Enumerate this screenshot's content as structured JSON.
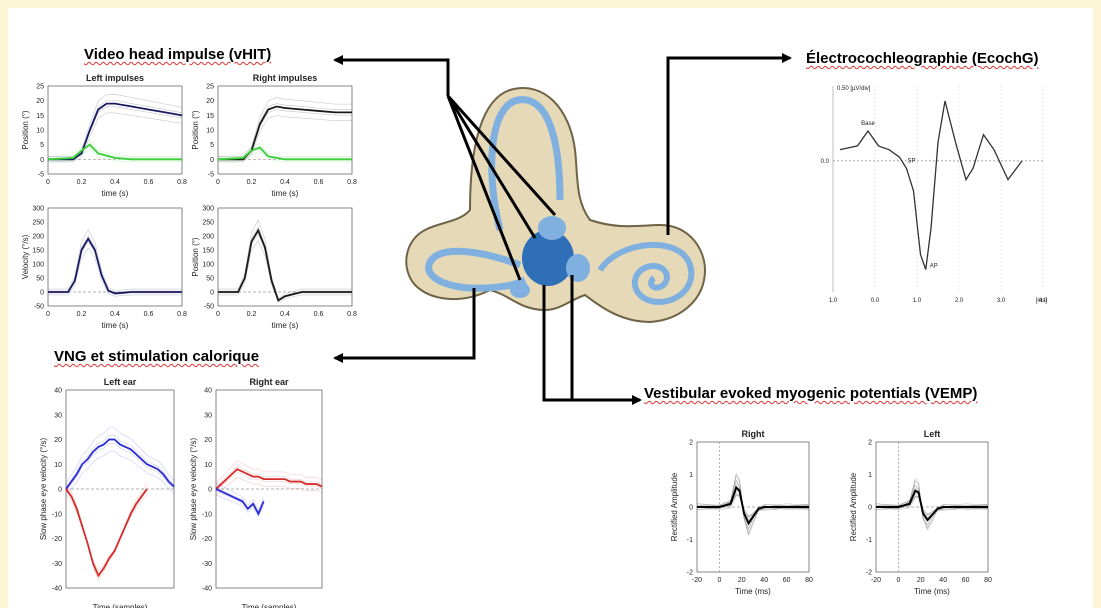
{
  "headings": {
    "vhit": "Video head impulse (vHIT)",
    "ecochg": "Électrocochleographie (EcochG)",
    "vng": "VNG et stimulation calorique",
    "vemp": "Vestibular evoked myogenic potentials (VEMP)"
  },
  "colors": {
    "background": "#fdf6d6",
    "left_ear": "#2b2bd6",
    "right_ear": "#d62b2b",
    "gain": "#3cd03c",
    "inner_ear_blue": "#7fb0e0",
    "inner_ear_dark": "#2f6fb8",
    "bone": "#e6d9b8"
  },
  "chart_data": [
    {
      "id": "vhit_left_position",
      "type": "line",
      "title": "Left impulses",
      "xlabel": "time (s)",
      "ylabel": "Position (°)",
      "xlim": [
        0,
        0.8
      ],
      "ylim": [
        -5,
        25
      ],
      "xticks": [
        "0",
        "0.2",
        "0.4",
        "0.6",
        "0.8"
      ],
      "yticks": [
        "-5",
        "0",
        "5",
        "10",
        "15",
        "20",
        "25"
      ],
      "series": [
        {
          "x": [
            0,
            0.15,
            0.2,
            0.25,
            0.3,
            0.35,
            0.4,
            0.5,
            0.6,
            0.7,
            0.8
          ],
          "y": [
            0,
            0,
            2,
            10,
            17,
            19,
            19,
            18,
            17,
            16,
            15
          ],
          "color": "#1a1a60"
        },
        {
          "x": [
            0,
            0.15,
            0.2,
            0.25,
            0.3,
            0.4,
            0.5,
            0.6,
            0.7,
            0.8
          ],
          "y": [
            0,
            0.5,
            3,
            5,
            2,
            0.5,
            0,
            0,
            0,
            0
          ],
          "color": "#3cd03c"
        }
      ]
    },
    {
      "id": "vhit_right_position",
      "type": "line",
      "title": "Right impulses",
      "xlabel": "time (s)",
      "ylabel": "Position (°)",
      "xlim": [
        0,
        0.8
      ],
      "ylim": [
        -5,
        25
      ],
      "xticks": [
        "0",
        "0.2",
        "0.4",
        "0.6",
        "0.8"
      ],
      "yticks": [
        "-5",
        "0",
        "5",
        "10",
        "15",
        "20",
        "25"
      ],
      "series": [
        {
          "x": [
            0,
            0.15,
            0.2,
            0.25,
            0.3,
            0.35,
            0.4,
            0.5,
            0.6,
            0.7,
            0.8
          ],
          "y": [
            0,
            0,
            3,
            12,
            17,
            18,
            17.5,
            17,
            16.5,
            16,
            16
          ],
          "color": "#1a1a1a"
        },
        {
          "x": [
            0,
            0.15,
            0.2,
            0.25,
            0.3,
            0.4,
            0.5,
            0.6,
            0.7,
            0.8
          ],
          "y": [
            0,
            0.5,
            3,
            4,
            1,
            0,
            0,
            0,
            0,
            0
          ],
          "color": "#3cd03c"
        }
      ]
    },
    {
      "id": "vhit_left_velocity",
      "type": "line",
      "title": "",
      "xlabel": "time (s)",
      "ylabel": "Velocity (°/s)",
      "xlim": [
        0,
        0.8
      ],
      "ylim": [
        -50,
        300
      ],
      "xticks": [
        "0",
        "0.2",
        "0.4",
        "0.6",
        "0.8"
      ],
      "yticks": [
        "-50",
        "0",
        "50",
        "100",
        "150",
        "200",
        "250",
        "300"
      ],
      "series": [
        {
          "x": [
            0,
            0.12,
            0.16,
            0.2,
            0.24,
            0.28,
            0.32,
            0.36,
            0.4,
            0.5,
            0.6,
            0.7,
            0.8
          ],
          "y": [
            0,
            0,
            40,
            150,
            190,
            150,
            60,
            5,
            -5,
            0,
            0,
            0,
            0
          ],
          "color": "#1a1a60"
        }
      ]
    },
    {
      "id": "vhit_right_velocity",
      "type": "line",
      "title": "",
      "xlabel": "time (s)",
      "ylabel": "Position (°)",
      "xlim": [
        0,
        0.8
      ],
      "ylim": [
        -50,
        300
      ],
      "xticks": [
        "0",
        "0.2",
        "0.4",
        "0.6",
        "0.8"
      ],
      "yticks": [
        "-50",
        "0",
        "50",
        "100",
        "150",
        "200",
        "250",
        "300"
      ],
      "series": [
        {
          "x": [
            0,
            0.12,
            0.16,
            0.2,
            0.24,
            0.28,
            0.32,
            0.36,
            0.4,
            0.5,
            0.6,
            0.7,
            0.8
          ],
          "y": [
            0,
            0,
            50,
            180,
            220,
            160,
            40,
            -30,
            -15,
            0,
            0,
            0,
            0
          ],
          "color": "#1a1a1a"
        }
      ]
    },
    {
      "id": "ecochg",
      "type": "line",
      "title": "",
      "top_label": "0.50 [µV/div]",
      "unit_label": "[ms]",
      "baseline_label": "0.0",
      "annotations": [
        "Base",
        "SP",
        "AP"
      ],
      "xticks": [
        "1.0",
        "0.0",
        "1.0",
        "2.0",
        "3.0",
        "4.0"
      ],
      "xlim": [
        -1,
        5
      ],
      "ylim": [
        -3.5,
        2
      ],
      "series": [
        {
          "x": [
            -0.8,
            -0.3,
            0,
            0.3,
            0.6,
            0.9,
            1.1,
            1.3,
            1.5,
            1.65,
            1.8,
            2.0,
            2.2,
            2.5,
            2.8,
            3.0,
            3.3,
            3.6,
            4.0,
            4.4
          ],
          "y": [
            0.3,
            0.4,
            0.8,
            0.4,
            0.3,
            0.1,
            -0.2,
            -0.8,
            -2.5,
            -2.9,
            -1.8,
            0.5,
            1.6,
            0.5,
            -0.5,
            -0.2,
            0.7,
            0.3,
            -0.5,
            0
          ]
        }
      ]
    },
    {
      "id": "vng_left",
      "type": "line",
      "title": "Left ear",
      "xlabel": "Time (samples)",
      "ylabel": "Slow phase eye velocity (°/s)",
      "ylim": [
        -40,
        40
      ],
      "yticks": [
        "40",
        "30",
        "20",
        "10",
        "0",
        "-10",
        "-20",
        "-30",
        "-40"
      ],
      "series": [
        {
          "x": [
            0,
            5,
            10,
            15,
            20,
            25,
            30,
            35,
            40,
            45,
            50,
            55,
            60,
            65,
            70,
            75,
            80,
            85,
            90,
            95,
            100
          ],
          "y": [
            0,
            3,
            6,
            10,
            12,
            15,
            17,
            18,
            20,
            20,
            18,
            17,
            16,
            14,
            12,
            10,
            9,
            8,
            6,
            3,
            1
          ],
          "color": "#2b2bd6"
        },
        {
          "x": [
            0,
            5,
            10,
            15,
            20,
            25,
            30,
            35,
            40,
            45,
            50,
            55,
            60,
            65,
            70,
            75
          ],
          "y": [
            0,
            -3,
            -8,
            -15,
            -22,
            -30,
            -35,
            -32,
            -28,
            -25,
            -20,
            -15,
            -10,
            -6,
            -3,
            0
          ],
          "color": "#d62b2b"
        }
      ]
    },
    {
      "id": "vng_right",
      "type": "line",
      "title": "Right ear",
      "xlabel": "Time (samples)",
      "ylabel": "Slow phase eye velocity (°/s)",
      "ylim": [
        -40,
        40
      ],
      "yticks": [
        "40",
        "30",
        "20",
        "10",
        "0",
        "-10",
        "-20",
        "-30",
        "-40"
      ],
      "series": [
        {
          "x": [
            0,
            5,
            10,
            15,
            20,
            25,
            30,
            35,
            40,
            45,
            50,
            55,
            60,
            65,
            70,
            75,
            80,
            85,
            90,
            95,
            100
          ],
          "y": [
            0,
            2,
            4,
            6,
            8,
            7,
            6,
            5,
            5,
            4,
            4,
            4,
            4,
            4,
            3,
            3,
            3,
            2,
            2,
            2,
            1
          ],
          "color": "#d62b2b"
        },
        {
          "x": [
            0,
            5,
            10,
            15,
            20,
            25,
            30,
            35,
            40,
            45
          ],
          "y": [
            0,
            -1,
            -2,
            -3,
            -4,
            -5,
            -8,
            -6,
            -10,
            -5
          ],
          "color": "#2b2bd6"
        }
      ]
    },
    {
      "id": "vemp_right",
      "type": "line",
      "title": "Right",
      "xlabel": "Time (ms)",
      "ylabel": "Rectified Amplitude",
      "xlim": [
        -20,
        80
      ],
      "ylim": [
        -2,
        2
      ],
      "xticks": [
        "-20",
        "0",
        "20",
        "40",
        "60",
        "80"
      ],
      "yticks": [
        "2",
        "1",
        "0",
        "-1",
        "-2"
      ],
      "series": [
        {
          "x": [
            -20,
            0,
            10,
            15,
            18,
            22,
            26,
            30,
            35,
            40,
            50,
            60,
            80
          ],
          "y": [
            0,
            0,
            0.1,
            0.6,
            0.5,
            -0.2,
            -0.5,
            -0.3,
            -0.05,
            0,
            0,
            0,
            0
          ]
        }
      ]
    },
    {
      "id": "vemp_left",
      "type": "line",
      "title": "Left",
      "xlabel": "Time (ms)",
      "ylabel": "Rectified Amplitude",
      "xlim": [
        -20,
        80
      ],
      "ylim": [
        -2,
        2
      ],
      "xticks": [
        "-20",
        "0",
        "20",
        "40",
        "60",
        "80"
      ],
      "yticks": [
        "2",
        "1",
        "0",
        "-1",
        "-2"
      ],
      "series": [
        {
          "x": [
            -20,
            0,
            10,
            15,
            18,
            22,
            26,
            30,
            35,
            40,
            50,
            60,
            80
          ],
          "y": [
            0,
            0,
            0.1,
            0.5,
            0.45,
            -0.2,
            -0.4,
            -0.25,
            -0.05,
            0,
            0,
            0,
            0
          ]
        }
      ]
    }
  ]
}
